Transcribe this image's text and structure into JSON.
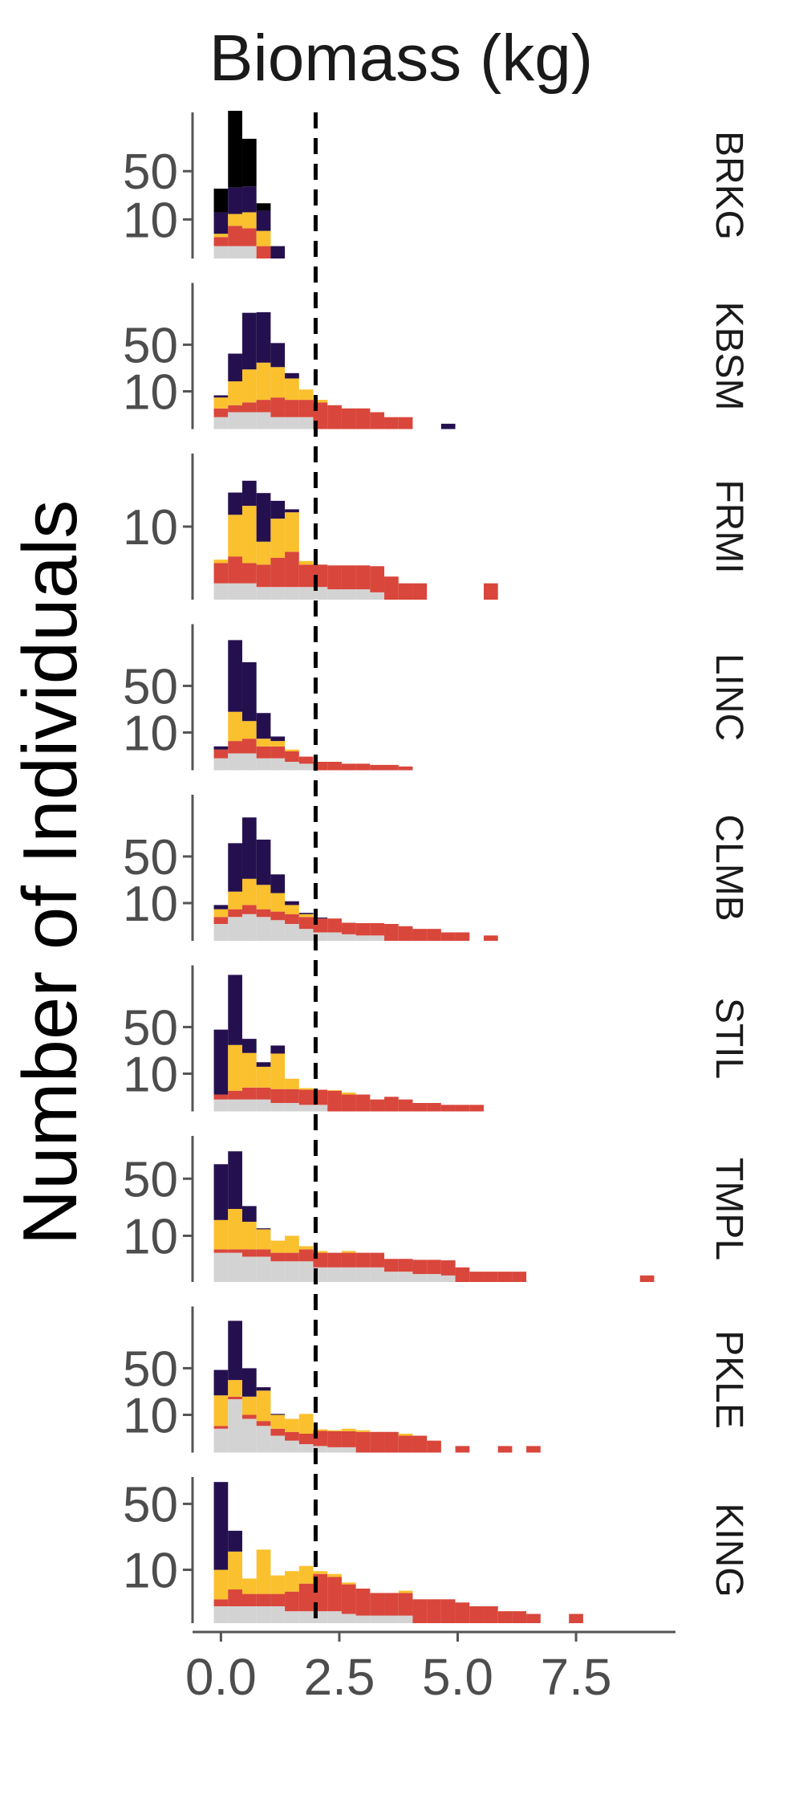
{
  "chart_data": {
    "type": "bar",
    "subtype": "faceted-stacked-histogram",
    "title": "Biomass (kg)",
    "xlabel": "",
    "ylabel": "Number of Individuals",
    "xlim": [
      -0.6,
      9.6
    ],
    "x_ticks": [
      0.0,
      2.5,
      5.0,
      7.5
    ],
    "x_tick_labels": [
      "0.0",
      "2.5",
      "5.0",
      "7.5"
    ],
    "y_scale": "sqrt",
    "bin_width": 0.3,
    "bin_starts": [
      -0.15,
      0.15,
      0.45,
      0.75,
      1.05,
      1.35,
      1.65,
      1.95,
      2.25,
      2.55,
      2.85,
      3.15,
      3.45,
      3.75,
      4.05,
      4.35,
      4.65,
      4.95,
      5.25,
      5.55,
      5.85,
      6.15,
      6.45,
      6.75,
      7.05,
      7.35,
      7.65,
      7.95,
      8.25,
      8.55,
      8.85
    ],
    "reference_line": {
      "x": 2.0,
      "style": "dashed"
    },
    "grid": false,
    "legend": "none",
    "series": [
      {
        "color": "#d3d3d3"
      },
      {
        "color": "#d9463b"
      },
      {
        "color": "#fbc02d"
      },
      {
        "color": "#25104f"
      }
    ],
    "facets": [
      {
        "label": "BRKG",
        "y_max": 140,
        "y_ticks": [
          10,
          50
        ],
        "y_tick_labels": [
          "10",
          "50"
        ],
        "counts": [
          [
            1,
            1,
            1,
            0,
            0
          ],
          [
            2,
            6,
            5,
            1,
            0
          ],
          [
            1,
            6,
            8,
            4,
            0
          ],
          [
            10,
            20,
            20,
            10,
            1
          ],
          [
            18,
            110,
            60,
            5,
            0
          ]
        ]
      },
      {
        "label": "KBSM",
        "y_max": 150,
        "y_ticks": [
          10,
          50
        ],
        "y_tick_labels": [
          "10",
          "50"
        ],
        "counts": [
          [
            1,
            2,
            2,
            2,
            1,
            1,
            1,
            0,
            0,
            0,
            0,
            0,
            0,
            0,
            0,
            0,
            0
          ],
          [
            2,
            2,
            3,
            4,
            6,
            5,
            5,
            5,
            4,
            3,
            3,
            2,
            1,
            1,
            0,
            0,
            0
          ],
          [
            4,
            12,
            20,
            25,
            20,
            12,
            5,
            1,
            0,
            0,
            0,
            0,
            0,
            0,
            0,
            0,
            0
          ],
          [
            1,
            24,
            70,
            65,
            25,
            4,
            0,
            0,
            0,
            0,
            0,
            0,
            0,
            0,
            0,
            0,
            0.2
          ]
        ]
      },
      {
        "label": "FRMI",
        "y_max": 40,
        "y_ticks": [
          10
        ],
        "y_tick_labels": [
          "10"
        ],
        "counts": [
          [
            0.5,
            0.5,
            0.5,
            0.3,
            0.3,
            0.3,
            0.3,
            0.3,
            0.2,
            0.2,
            0.2,
            0.1,
            0,
            0,
            0,
            0,
            0,
            0,
            0,
            0
          ],
          [
            2,
            3,
            2,
            2,
            3,
            4,
            2,
            2,
            2,
            2,
            2,
            2,
            1,
            0.5,
            0.5,
            0,
            0,
            0,
            0,
            0.5
          ],
          [
            0.5,
            10,
            14,
            4,
            9,
            10,
            0.5,
            0,
            0,
            0,
            0,
            0,
            0,
            0,
            0,
            0,
            0,
            0,
            0,
            0
          ],
          [
            0,
            8,
            10,
            15,
            6,
            1,
            0,
            0,
            0,
            0,
            0,
            0,
            0,
            0,
            0,
            0,
            0,
            0,
            0,
            0
          ]
        ]
      },
      {
        "label": "LINC",
        "y_max": 150,
        "y_ticks": [
          10,
          50
        ],
        "y_tick_labels": [
          "10",
          "50"
        ],
        "counts": [
          [
            1,
            2,
            2,
            1,
            1,
            0.5,
            0.3,
            0,
            0,
            0,
            0,
            0,
            0,
            0
          ],
          [
            2,
            4,
            5,
            3,
            3,
            2,
            1,
            0.5,
            0.5,
            0.3,
            0.3,
            0.2,
            0.2,
            0.1
          ],
          [
            0,
            18,
            10,
            3,
            2,
            0.5,
            0,
            0,
            0,
            0,
            0,
            0,
            0,
            0
          ],
          [
            1,
            95,
            65,
            16,
            2,
            0,
            0,
            0,
            0,
            0,
            0,
            0,
            0,
            0
          ]
        ]
      },
      {
        "label": "CLMB",
        "y_max": 150,
        "y_ticks": [
          10,
          50
        ],
        "y_tick_labels": [
          "10",
          "50"
        ],
        "counts": [
          [
            2,
            4,
            5,
            4,
            3,
            2,
            1,
            0.5,
            0.5,
            0.3,
            0.2,
            0.2,
            0,
            0,
            0,
            0,
            0,
            0,
            0,
            0
          ],
          [
            2,
            3,
            4,
            3,
            3,
            3,
            3,
            3,
            3,
            2,
            2,
            2,
            2,
            1.5,
            1,
            1,
            0.5,
            0.5,
            0,
            0.2
          ],
          [
            3,
            10,
            18,
            15,
            10,
            4,
            1,
            0,
            0,
            0,
            0,
            0,
            0,
            0,
            0,
            0,
            0,
            0,
            0,
            0
          ],
          [
            2,
            50,
            80,
            50,
            15,
            2,
            0.5,
            0.3,
            0,
            0,
            0,
            0,
            0,
            0,
            0,
            0,
            0,
            0,
            0,
            0
          ]
        ]
      },
      {
        "label": "STIL",
        "y_max": 150,
        "y_ticks": [
          10,
          50
        ],
        "y_tick_labels": [
          "10",
          "50"
        ],
        "counts": [
          [
            1,
            1,
            1,
            1,
            0.5,
            0.5,
            0.3,
            0.3,
            0,
            0,
            0,
            0,
            0,
            0,
            0,
            0,
            0,
            0,
            0
          ],
          [
            1,
            2,
            3,
            3,
            3,
            3,
            3,
            3,
            3,
            2,
            2,
            1,
            1.5,
            1,
            0.5,
            0.5,
            0.3,
            0.3,
            0.3
          ],
          [
            0,
            28,
            20,
            10,
            20,
            4,
            0.5,
            0,
            0.2,
            0.5,
            0,
            0,
            0,
            0,
            0,
            0,
            0,
            0,
            0
          ],
          [
            45,
            100,
            13,
            3,
            7,
            0,
            0,
            0,
            0,
            0,
            0,
            0,
            0,
            0,
            0,
            0,
            0,
            0,
            0
          ]
        ]
      },
      {
        "label": "TMPL",
        "y_max": 100,
        "y_ticks": [
          10,
          50
        ],
        "y_tick_labels": [
          "10",
          "50"
        ],
        "counts": [
          [
            4,
            4,
            3,
            3,
            2,
            2,
            2,
            1,
            1,
            1,
            1,
            1,
            0.5,
            0.5,
            0.3,
            0.3,
            0.2,
            0,
            0,
            0,
            0,
            0,
            0,
            0,
            0,
            0,
            0,
            0,
            0,
            0,
            0
          ],
          [
            1,
            1,
            2,
            2,
            2,
            2,
            3,
            3,
            3,
            3,
            3,
            3,
            2,
            2,
            2,
            2,
            2,
            1,
            0.5,
            0.5,
            0.5,
            0.5,
            0,
            0,
            0,
            0,
            0,
            0,
            0,
            0,
            0.2
          ],
          [
            13,
            20,
            12,
            8,
            4,
            6,
            1,
            0.5,
            0,
            0.5,
            0,
            0,
            0,
            0,
            0,
            0,
            0,
            0,
            0,
            0,
            0,
            0,
            0,
            0,
            0,
            0,
            0,
            0,
            0,
            0,
            0
          ],
          [
            47,
            55,
            10,
            0.5,
            0,
            0,
            0,
            0,
            0,
            0,
            0,
            0,
            0,
            0,
            0,
            0,
            0,
            0,
            0,
            0,
            0,
            0,
            0,
            0,
            0,
            0,
            0,
            0,
            0,
            0,
            0
          ]
        ]
      },
      {
        "label": "PKLE",
        "y_max": 150,
        "y_ticks": [
          10,
          50
        ],
        "y_tick_labels": [
          "10",
          "50"
        ],
        "counts": [
          [
            4,
            20,
            8,
            5,
            2,
            1,
            0.5,
            0.3,
            0.2,
            0.2,
            0,
            0,
            0,
            0,
            0,
            0,
            0,
            0,
            0,
            0,
            0,
            0,
            0,
            0
          ],
          [
            1,
            2,
            2,
            2,
            2,
            2,
            2,
            3,
            3,
            3,
            3,
            3,
            3,
            2,
            2,
            1,
            0,
            0.3,
            0,
            0,
            0.3,
            0,
            0.3,
            0
          ],
          [
            18,
            15,
            12,
            20,
            6,
            5,
            8,
            0.5,
            0.3,
            0.8,
            0.5,
            0,
            0,
            0.5,
            0,
            0,
            0,
            0,
            0,
            0,
            0,
            0,
            0,
            0
          ],
          [
            25,
            85,
            28,
            3,
            0.5,
            0,
            0,
            0,
            0,
            0,
            0,
            0,
            0,
            0,
            0,
            0,
            0,
            0,
            0,
            0,
            0,
            0,
            0,
            0
          ]
        ]
      },
      {
        "label": "KING",
        "y_max": 75,
        "y_ticks": [
          10,
          50
        ],
        "y_tick_labels": [
          "10",
          "50"
        ],
        "counts": [
          [
            1,
            1,
            1,
            1,
            1,
            0.5,
            0.5,
            0.5,
            0.5,
            0.3,
            0.2,
            0.2,
            0.2,
            0.2,
            0,
            0,
            0,
            0,
            0,
            0,
            0,
            0,
            0,
            0,
            0,
            0,
            0
          ],
          [
            1,
            3,
            2,
            2,
            2,
            3,
            5,
            8,
            7,
            5,
            4,
            3,
            3,
            3,
            2,
            2,
            2,
            1.5,
            1,
            1,
            0.5,
            0.5,
            0.3,
            0,
            0,
            0.3,
            0
          ],
          [
            8,
            14,
            4,
            16,
            5,
            6,
            6,
            1,
            1,
            0.5,
            0,
            0,
            0,
            0.5,
            0,
            0,
            0,
            0,
            0,
            0,
            0,
            0,
            0,
            0,
            0,
            0,
            0
          ],
          [
            60,
            12,
            0,
            0,
            0,
            0,
            0,
            0,
            0,
            0,
            0,
            0,
            0,
            0,
            0,
            0,
            0,
            0,
            0,
            0,
            0,
            0,
            0,
            0,
            0,
            0,
            0
          ]
        ]
      }
    ]
  }
}
